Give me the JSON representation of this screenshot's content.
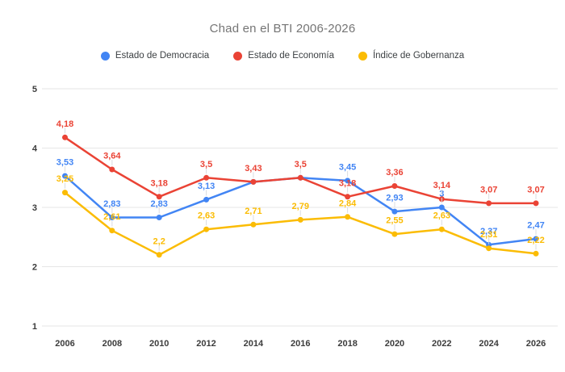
{
  "title": "Chad en el BTI 2006-2026",
  "chart_data": {
    "type": "line",
    "title": "Chad en el BTI 2006-2026",
    "categories": [
      "2006",
      "2008",
      "2010",
      "2012",
      "2014",
      "2016",
      "2018",
      "2020",
      "2022",
      "2024",
      "2026"
    ],
    "series": [
      {
        "name": "Estado de Democracia",
        "color": "#4285F4",
        "values": [
          3.53,
          2.83,
          2.83,
          3.13,
          3.43,
          3.5,
          3.45,
          2.93,
          3,
          2.37,
          2.47
        ],
        "point_labels": [
          "3,53",
          "2,83",
          "2,83",
          "3,13",
          null,
          null,
          "3,45",
          "2,93",
          "3",
          "2,37",
          "2,47"
        ]
      },
      {
        "name": "Estado de Economía",
        "color": "#EA4335",
        "values": [
          4.18,
          3.64,
          3.18,
          3.5,
          3.43,
          3.5,
          3.18,
          3.36,
          3.14,
          3.07,
          3.07
        ],
        "point_labels": [
          "4,18",
          "3,64",
          "3,18",
          "3,5",
          "3,43",
          "3,5",
          "3,18",
          "3,36",
          "3,14",
          "3,07",
          "3,07"
        ]
      },
      {
        "name": "Índice de Gobernanza",
        "color": "#FBBC04",
        "values": [
          3.25,
          2.61,
          2.2,
          2.63,
          2.71,
          2.79,
          2.84,
          2.55,
          2.63,
          2.31,
          2.22
        ],
        "point_labels": [
          "3,25",
          "2,61",
          "2,2",
          "2,63",
          "2,71",
          "2,79",
          "2,84",
          "2,55",
          "2,63",
          "2,31",
          "2,22"
        ]
      }
    ],
    "ylim": [
      1,
      5
    ],
    "yticks": [
      5,
      4,
      3,
      2,
      1
    ],
    "grid": true,
    "legend_position": "top",
    "decimal_separator": ","
  },
  "colors": {
    "background": "#ffffff",
    "title_text": "#757575",
    "legend_text": "#3c4043",
    "axis_text": "#3c3c3c",
    "gridline": "#e6e6e6",
    "annotation_stem": "#dadce0"
  }
}
